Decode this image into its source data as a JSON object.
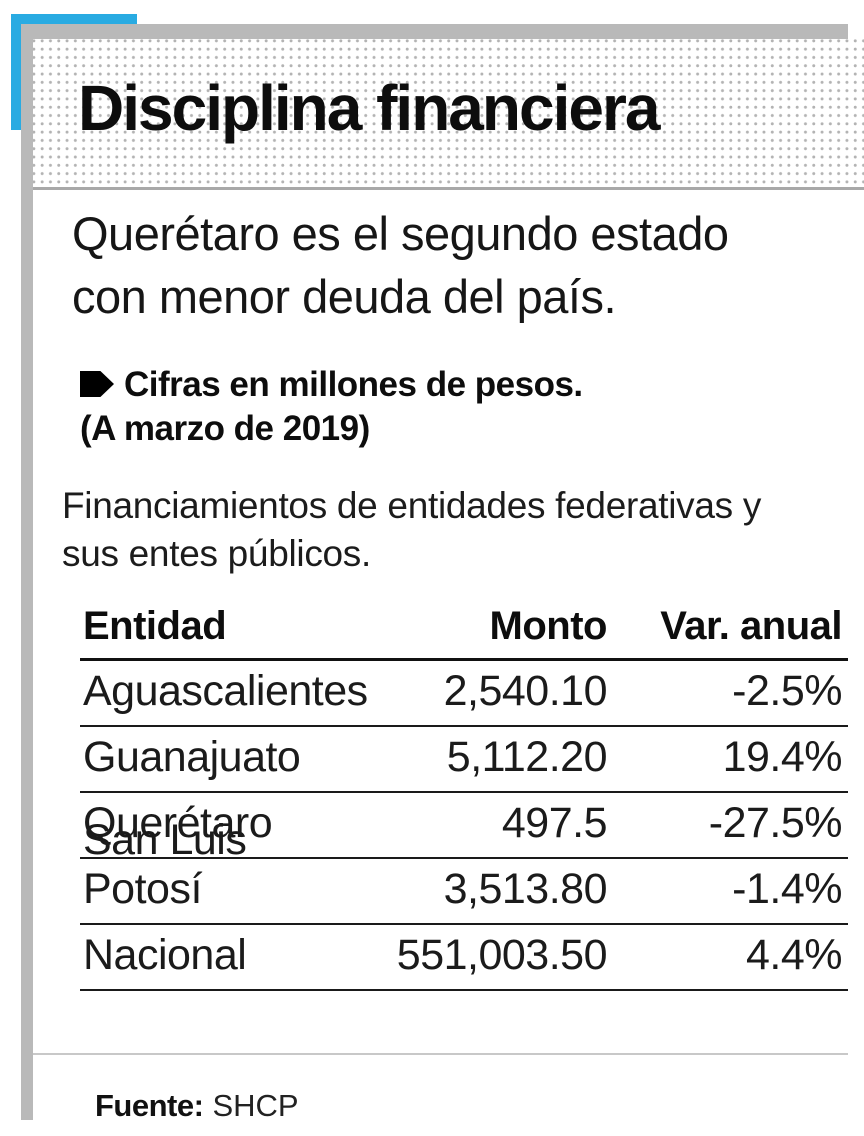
{
  "colors": {
    "accent_cyan": "#29abe2",
    "frame_gray": "#b9b9b9",
    "dot_gray": "#b3b3b3",
    "table_line": "#1a1a1a",
    "footer_divider": "#c8c8c8",
    "text_black": "#0d0d0d"
  },
  "header": {
    "title": "Disciplina financiera"
  },
  "intro": {
    "subtitle": "Querétaro es el segundo estado\ncon menor deuda del país.",
    "kicker_line1": "Cifras en millones de pesos.",
    "kicker_line2": "(A marzo de 2019)",
    "lede": "Financiamientos de entidades federativas y\nsus entes públicos."
  },
  "footer": {
    "source_label": "Fuente:",
    "source_value": "SHCP"
  },
  "chart_data": {
    "type": "table",
    "title": "Disciplina financiera",
    "subtitle": "Querétaro es el segundo estado con menor deuda del país.",
    "units_note": "Cifras en millones de pesos. (A marzo de 2019)",
    "description": "Financiamientos de entidades federativas y sus entes públicos.",
    "columns": [
      "Entidad",
      "Monto",
      "Var. anual"
    ],
    "rows": [
      [
        "Aguascalientes",
        "2,540.10",
        "-2.5%"
      ],
      [
        "Guanajuato",
        "5,112.20",
        "19.4%"
      ],
      [
        "Querétaro",
        "497.5",
        "-27.5%"
      ],
      [
        "San Luis Potosí",
        "3,513.80",
        "-1.4%"
      ],
      [
        "Nacional",
        "551,003.50",
        "4.4%"
      ]
    ],
    "numeric_rows": [
      {
        "entidad": "Aguascalientes",
        "monto_mdp": 2540.1,
        "var_anual_pct": -2.5
      },
      {
        "entidad": "Guanajuato",
        "monto_mdp": 5112.2,
        "var_anual_pct": 19.4
      },
      {
        "entidad": "Querétaro",
        "monto_mdp": 497.5,
        "var_anual_pct": -27.5
      },
      {
        "entidad": "San Luis Potosí",
        "monto_mdp": 3513.8,
        "var_anual_pct": -1.4
      },
      {
        "entidad": "Nacional",
        "monto_mdp": 551003.5,
        "var_anual_pct": 4.4
      }
    ],
    "source": "SHCP"
  }
}
